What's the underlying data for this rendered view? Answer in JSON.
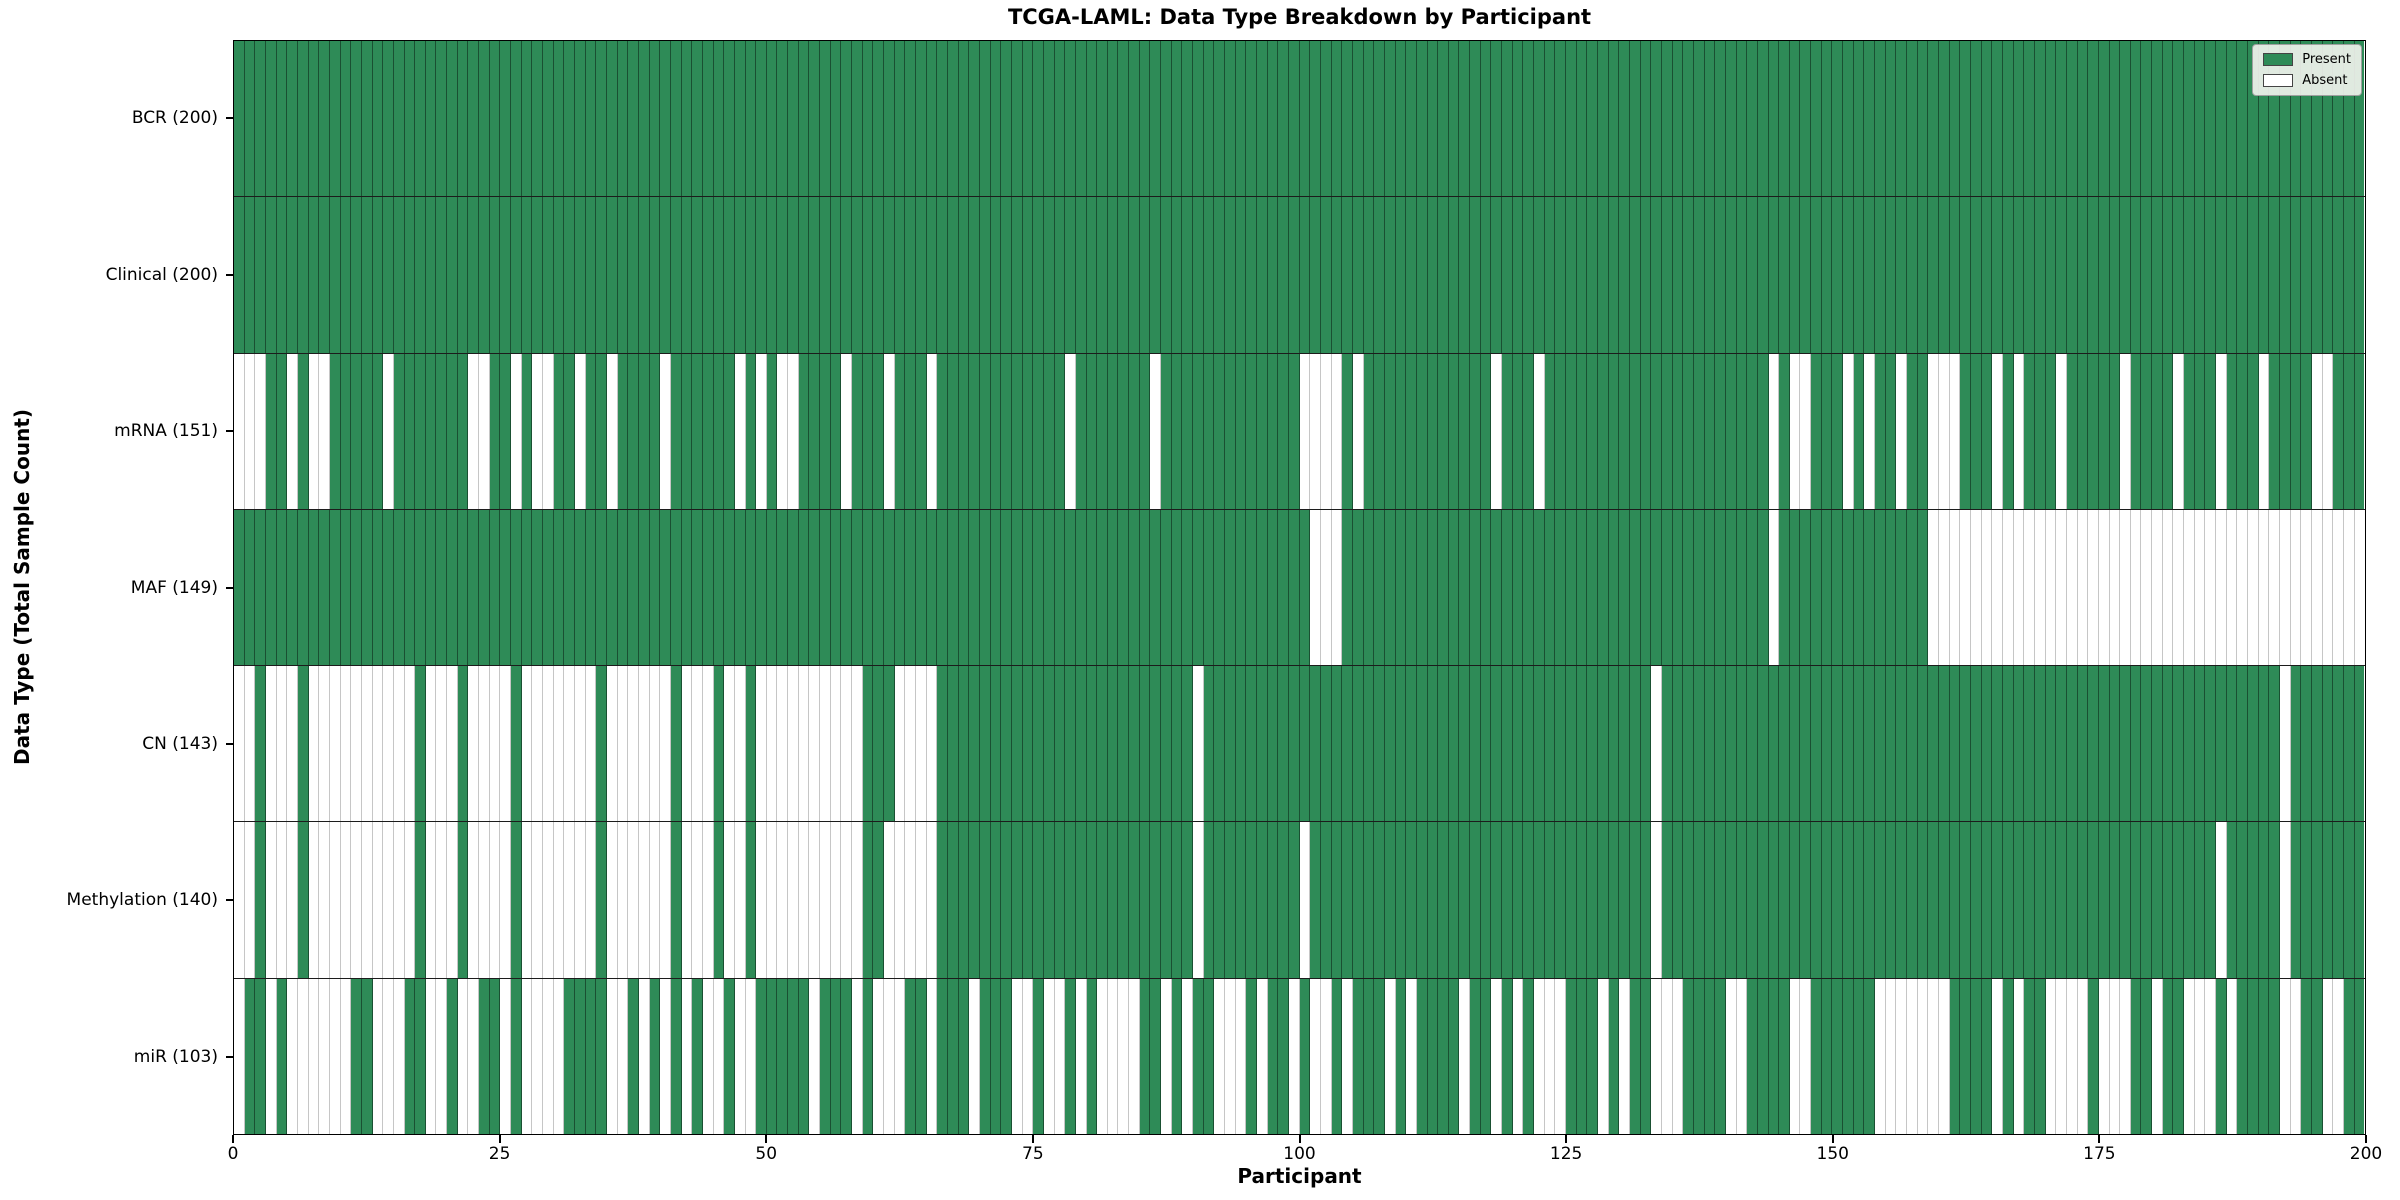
{
  "chart_data": {
    "type": "heatmap",
    "title": "TCGA-LAML: Data Type Breakdown by Participant",
    "xlabel": "Participant",
    "ylabel": "Data Type (Total Sample Count)",
    "x_ticks": [
      0,
      25,
      50,
      75,
      100,
      125,
      150,
      175,
      200
    ],
    "x_range": [
      0,
      200
    ],
    "n_participants": 200,
    "grid": false,
    "legend_position": "upper right",
    "legend": [
      {
        "label": "Present",
        "color": "#2e8b57"
      },
      {
        "label": "Absent",
        "color": "#ffffff"
      }
    ],
    "colors": {
      "present": "#2e8b57",
      "absent": "#ffffff",
      "present_cell_edge": "rgba(0,0,0,0.42)",
      "absent_cell_edge": "#c6c6c6",
      "row_separator": "#1c1c1c",
      "axis": "#000000"
    },
    "rows": [
      {
        "name": "BCR",
        "total": 200,
        "label": "BCR (200)",
        "presence": "11111111111111111111111111111111111111111111111111111111111111111111111111111111111111111111111111111111111111111111111111111111111111111111111111111111111111111111111111111111111111111111111111111111"
      },
      {
        "name": "Clinical",
        "total": 200,
        "label": "Clinical (200)",
        "presence": "11111111111111111111111111111111111111111111111111111111111111111111111111111111111111111111111111111111111111111111111111111111111111111111111111111111111111111111111111111111111111111111111111111111"
      },
      {
        "name": "mRNA",
        "total": 151,
        "label": "mRNA (151)",
        "presence": "00011010011111011111110011010011011011110111111010100111101110111011111111111101111111011111111111110000101111111111110111011111111111111111111101001110101101100011101011101111101111011101110111100111 11"
      },
      {
        "name": "MAF",
        "total": 149,
        "label": "MAF (149)",
        "presence": "11111111111111111111111111111111111111111111111111111111111111111111111111111111111111111111111111111000111111111111111111111111111111111111111101111111111111100000000000000000000000000000000000000000"
      },
      {
        "name": "CN",
        "total": 143,
        "label": "CN (143)",
        "presence": "00100010000000000100010000100000001000000100010010000000000111000011111111111111111111111101111111111111111111111111111111111111111110111111111111111111111111111111111111111111111111111111111101111111 11"
      },
      {
        "name": "Methylation",
        "total": 140,
        "label": "Methylation (140)",
        "presence": "00100010000000000100010000100000001000000100010010000000000110000011111111111111111111111101111111110111111111111111111111111111111110111111111111111111111111111111111111111111111111111101111101111111 11"
      },
      {
        "name": "miR",
        "total": 103,
        "label": "miR (103)",
        "presence": "01101000000110001100100110100001111001010101001001111101110100011011101110010010100001101011000101101001011101011110110101000111010110001111001111001111110000000111101011000010001101100010111100110011"
      }
    ]
  }
}
